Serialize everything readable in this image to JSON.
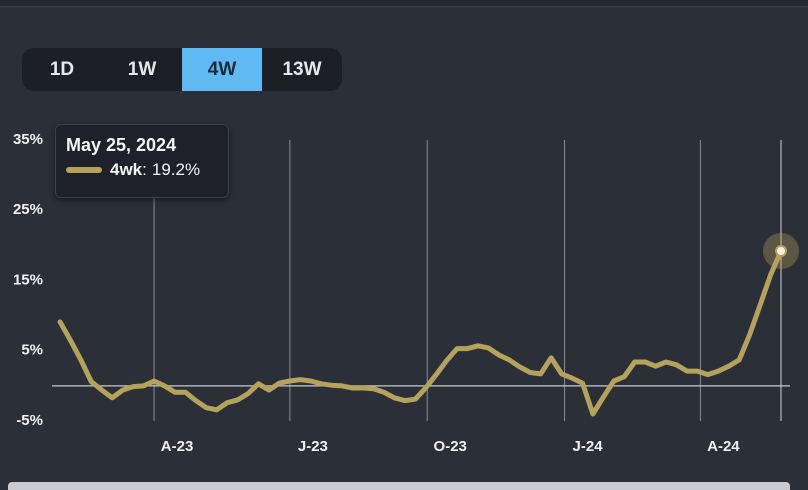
{
  "buttons": [
    "1D",
    "1W",
    "4W",
    "13W"
  ],
  "active_button": "4W",
  "chart_data": {
    "type": "line",
    "xlim": [
      "2023-01-28",
      "2024-05-25"
    ],
    "xticks": [
      {
        "value": "2023-04-01",
        "label": "A-23"
      },
      {
        "value": "2023-07-01",
        "label": "J-23"
      },
      {
        "value": "2023-10-01",
        "label": "O-23"
      },
      {
        "value": "2024-01-01",
        "label": "J-24"
      },
      {
        "value": "2024-04-01",
        "label": "A-24"
      }
    ],
    "ylim": [
      -5,
      35
    ],
    "yticks": [
      {
        "value": -5,
        "label": "-5%"
      },
      {
        "value": 5,
        "label": "5%"
      },
      {
        "value": 15,
        "label": "15%"
      },
      {
        "value": 25,
        "label": "25%"
      },
      {
        "value": 35,
        "label": "35%"
      }
    ],
    "grid": "x",
    "series": [
      {
        "name": "4wk",
        "color": "#b5a35b",
        "x": [
          "2023-01-28",
          "2023-02-04",
          "2023-02-11",
          "2023-02-18",
          "2023-02-25",
          "2023-03-04",
          "2023-03-11",
          "2023-03-18",
          "2023-03-25",
          "2023-04-01",
          "2023-04-08",
          "2023-04-15",
          "2023-04-22",
          "2023-04-29",
          "2023-05-06",
          "2023-05-13",
          "2023-05-20",
          "2023-05-27",
          "2023-06-03",
          "2023-06-10",
          "2023-06-17",
          "2023-06-24",
          "2023-07-01",
          "2023-07-08",
          "2023-07-15",
          "2023-07-22",
          "2023-07-29",
          "2023-08-05",
          "2023-08-12",
          "2023-08-19",
          "2023-08-26",
          "2023-09-02",
          "2023-09-09",
          "2023-09-16",
          "2023-09-23",
          "2023-09-30",
          "2023-10-07",
          "2023-10-14",
          "2023-10-21",
          "2023-10-28",
          "2023-11-04",
          "2023-11-11",
          "2023-11-18",
          "2023-11-25",
          "2023-12-02",
          "2023-12-09",
          "2023-12-16",
          "2023-12-23",
          "2023-12-30",
          "2024-01-06",
          "2024-01-13",
          "2024-01-20",
          "2024-01-27",
          "2024-02-03",
          "2024-02-10",
          "2024-02-17",
          "2024-02-24",
          "2024-03-02",
          "2024-03-09",
          "2024-03-16",
          "2024-03-23",
          "2024-03-30",
          "2024-04-06",
          "2024-04-13",
          "2024-04-20",
          "2024-04-27",
          "2024-05-04",
          "2024-05-11",
          "2024-05-18",
          "2024-05-25"
        ],
        "values": [
          9.1,
          6.5,
          3.7,
          0.6,
          -0.6,
          -1.7,
          -0.6,
          -0.1,
          0,
          0.7,
          0,
          -0.9,
          -0.9,
          -2.1,
          -3.1,
          -3.4,
          -2.4,
          -2.0,
          -1.1,
          0.3,
          -0.6,
          0.4,
          0.7,
          0.9,
          0.7,
          0.3,
          0.1,
          0,
          -0.3,
          -0.3,
          -0.4,
          -0.9,
          -1.7,
          -2.1,
          -1.9,
          -0.3,
          1.6,
          3.6,
          5.3,
          5.3,
          5.7,
          5.4,
          4.4,
          3.7,
          2.7,
          1.9,
          1.7,
          4.0,
          1.7,
          1.1,
          0.4,
          -4.0,
          -1.6,
          0.7,
          1.3,
          3.4,
          3.4,
          2.8,
          3.4,
          3.0,
          2.1,
          2.1,
          1.6,
          2.1,
          2.8,
          3.7,
          7.3,
          11.5,
          15.8,
          19.2
        ]
      }
    ],
    "tooltip": {
      "title": "May 25, 2024",
      "value_label": "19.2%"
    }
  }
}
